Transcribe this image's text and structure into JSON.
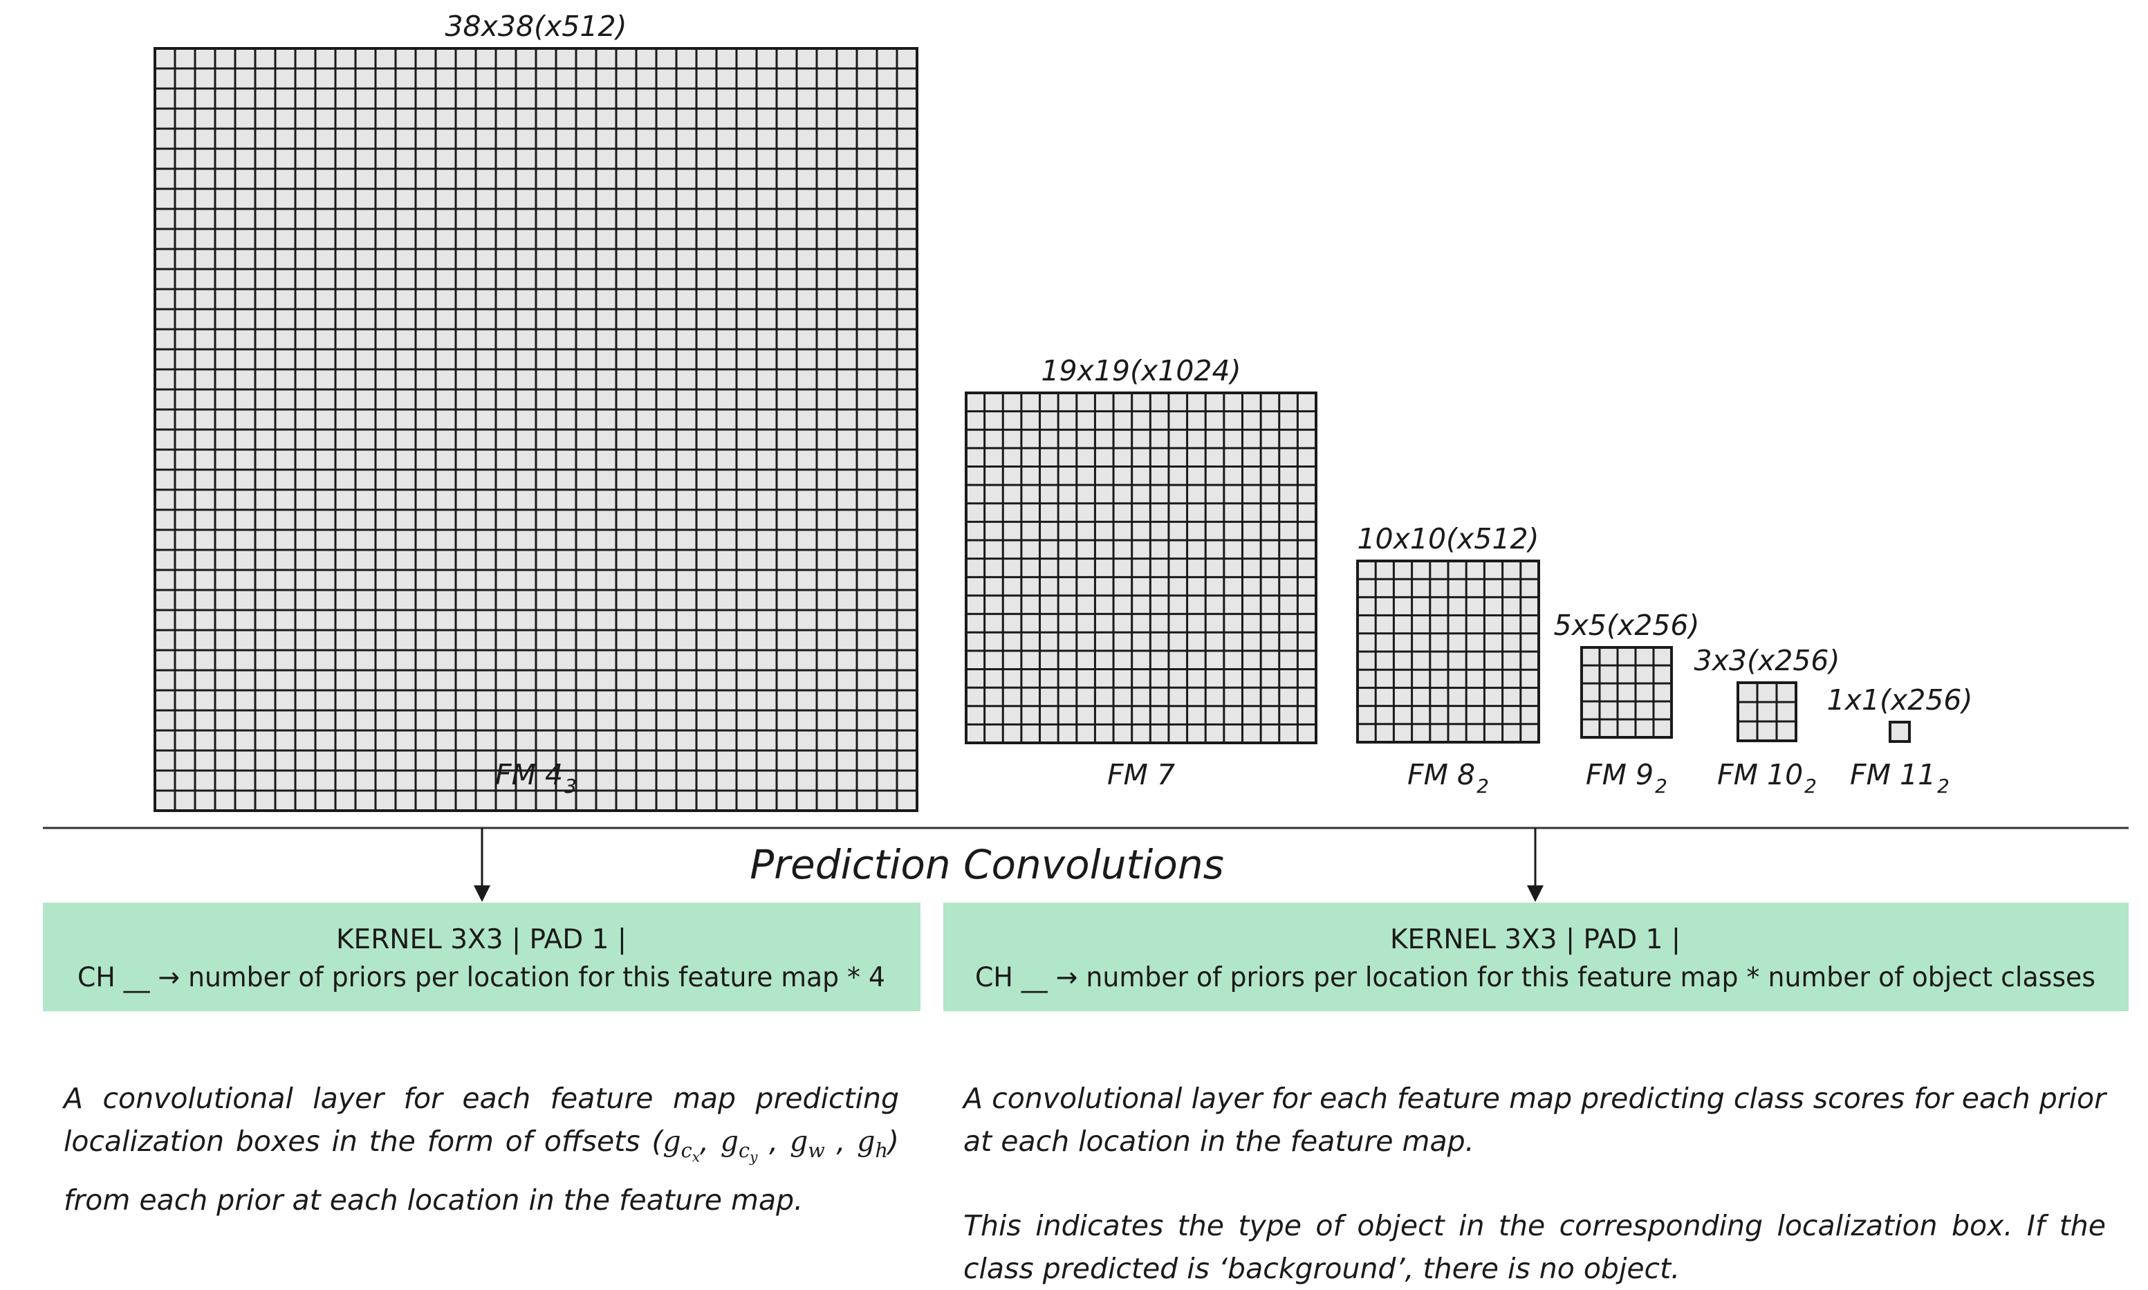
{
  "feature_maps": [
    {
      "name_base": "FM 4",
      "name_sub": "3",
      "shape": "38x38(x512)",
      "cells": 38
    },
    {
      "name_base": "FM 7",
      "name_sub": "",
      "shape": "19x19(x1024)",
      "cells": 19
    },
    {
      "name_base": "FM 8",
      "name_sub": "2",
      "shape": "10x10(x512)",
      "cells": 10
    },
    {
      "name_base": "FM 9",
      "name_sub": "2",
      "shape": "5x5(x256)",
      "cells": 5
    },
    {
      "name_base": "FM 10",
      "name_sub": "2",
      "shape": "3x3(x256)",
      "cells": 3
    },
    {
      "name_base": "FM 11",
      "name_sub": "2",
      "shape": "1x1(x256)",
      "cells": 1
    }
  ],
  "section_title": "Prediction Convolutions",
  "localization": {
    "box_line1": "KERNEL 3X3 | PAD 1 |",
    "box_line2": "CH __ → number of priors per location for this feature map * 4",
    "desc_before": "A convolutional layer for each feature map predicting localization boxes in the form of offsets (",
    "offsets": [
      "g_cx",
      "g_cy",
      "g_w",
      "g_h"
    ],
    "desc_after": ") from each prior at each location in the feature map."
  },
  "classification": {
    "box_line1": "KERNEL 3X3 | PAD 1 |",
    "box_line2": "CH  __ → number of priors per location for this feature map * number of object classes",
    "desc1": "A convolutional layer for each feature map predicting class scores for each prior at each location in the feature map.",
    "desc2": "This indicates the type of object in the corresponding localization box. If the class predicted is ‘background’, there is no object."
  },
  "colors": {
    "box_fill": "#b2e6c8",
    "cell_fill": "#e6e6e6",
    "grid_stroke": "#1a1a1a"
  }
}
